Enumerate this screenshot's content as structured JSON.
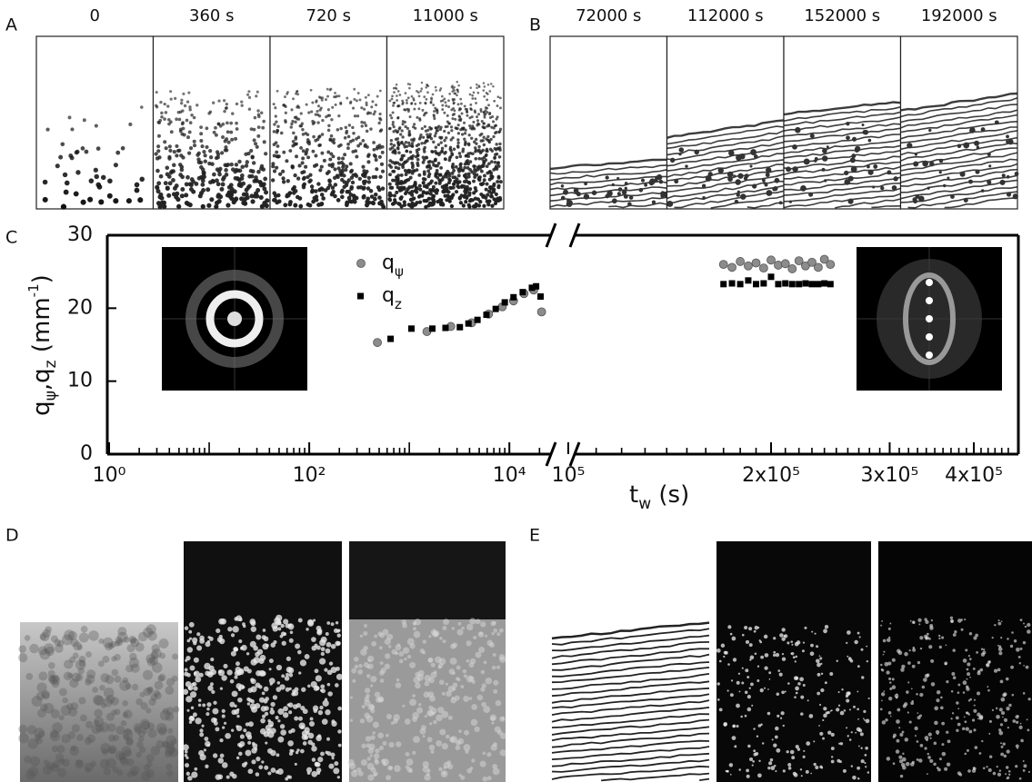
{
  "panels": {
    "a": {
      "label": "A",
      "frames": [
        "0",
        "360 s",
        "720 s",
        "11000 s"
      ]
    },
    "b": {
      "label": "B",
      "frames": [
        "72000 s",
        "112000 s",
        "152000 s",
        "192000 s"
      ]
    },
    "d": {
      "label": "D"
    },
    "e": {
      "label": "E"
    }
  },
  "chart_data": {
    "type": "scatter",
    "label": "C",
    "ylabel": [
      {
        "text": "q"
      },
      {
        "text": "ψ",
        "shift": "sub"
      },
      {
        "text": ",q"
      },
      {
        "text": "z",
        "shift": "sub"
      },
      {
        "text": " (mm"
      },
      {
        "text": "-1",
        "shift": "super"
      },
      {
        "text": ")"
      }
    ],
    "xlabel": [
      {
        "text": "t"
      },
      {
        "text": "w",
        "shift": "sub"
      },
      {
        "text": " (s)"
      }
    ],
    "ylim": [
      0,
      30
    ],
    "yticks": [
      0,
      10,
      20,
      30
    ],
    "log_x": true,
    "xaxes": [
      {
        "xlim": [
          1,
          25000
        ],
        "xticks": [
          {
            "value": 1,
            "label": "10⁰"
          },
          {
            "value": 100,
            "label": "10²"
          },
          {
            "value": 10000,
            "label": "10⁴"
          }
        ],
        "minor_xticks": [
          2,
          3,
          4,
          5,
          6,
          7,
          8,
          9,
          10,
          20,
          30,
          40,
          50,
          60,
          70,
          80,
          90,
          200,
          300,
          400,
          500,
          600,
          700,
          800,
          900,
          1000,
          2000,
          3000,
          4000,
          5000,
          6000,
          7000,
          8000,
          9000,
          20000
        ]
      },
      {
        "xlim": [
          100000,
          460000
        ],
        "xticks": [
          {
            "value": 100000,
            "label": "10⁵"
          },
          {
            "value": 200000,
            "label": "2x10⁵"
          },
          {
            "value": 300000,
            "label": "3x10⁵"
          },
          {
            "value": 400000,
            "label": "4x10⁵"
          }
        ],
        "minor_xticks": [
          110000,
          120000,
          130000,
          140000,
          150000,
          160000,
          170000,
          180000,
          190000,
          210000,
          220000,
          230000,
          240000,
          250000,
          260000,
          270000,
          280000,
          290000,
          310000,
          320000,
          330000,
          340000,
          350000,
          360000,
          370000,
          380000,
          390000,
          410000,
          420000,
          430000,
          440000,
          450000
        ]
      }
    ],
    "series": [
      {
        "name": "qψ",
        "color": "#8c8c8c",
        "marker": "circle",
        "x": [
          480,
          1500,
          2600,
          4200,
          6200,
          8500,
          11000,
          14000,
          17500,
          21000,
          170000,
          175000,
          180000,
          185000,
          190000,
          195000,
          200000,
          205000,
          210000,
          215000,
          220000,
          225000,
          230000,
          235000,
          240000,
          245000
        ],
        "values": [
          15.3,
          16.8,
          17.5,
          18.0,
          19.2,
          20.2,
          21.0,
          22.0,
          22.5,
          19.5,
          26.0,
          25.6,
          26.4,
          25.8,
          26.2,
          25.5,
          26.6,
          25.9,
          26.1,
          25.4,
          26.5,
          25.8,
          26.3,
          25.6,
          26.7,
          26.0
        ]
      },
      {
        "name": "qz",
        "color": "#000000",
        "marker": "square",
        "x": [
          650,
          1050,
          1700,
          2300,
          3200,
          3900,
          4800,
          5900,
          7300,
          9000,
          11000,
          13600,
          16800,
          18500,
          20500,
          170000,
          175000,
          180000,
          185000,
          190000,
          195000,
          200000,
          205000,
          210000,
          215000,
          220000,
          225000,
          230000,
          235000,
          240000,
          245000
        ],
        "values": [
          15.8,
          17.2,
          17.2,
          17.3,
          17.4,
          17.9,
          18.4,
          19.1,
          19.9,
          20.8,
          21.5,
          22.2,
          22.8,
          23.0,
          21.6,
          23.3,
          23.4,
          23.3,
          23.8,
          23.3,
          23.4,
          24.3,
          23.3,
          23.4,
          23.3,
          23.3,
          23.4,
          23.3,
          23.3,
          23.4,
          23.3
        ]
      }
    ]
  }
}
